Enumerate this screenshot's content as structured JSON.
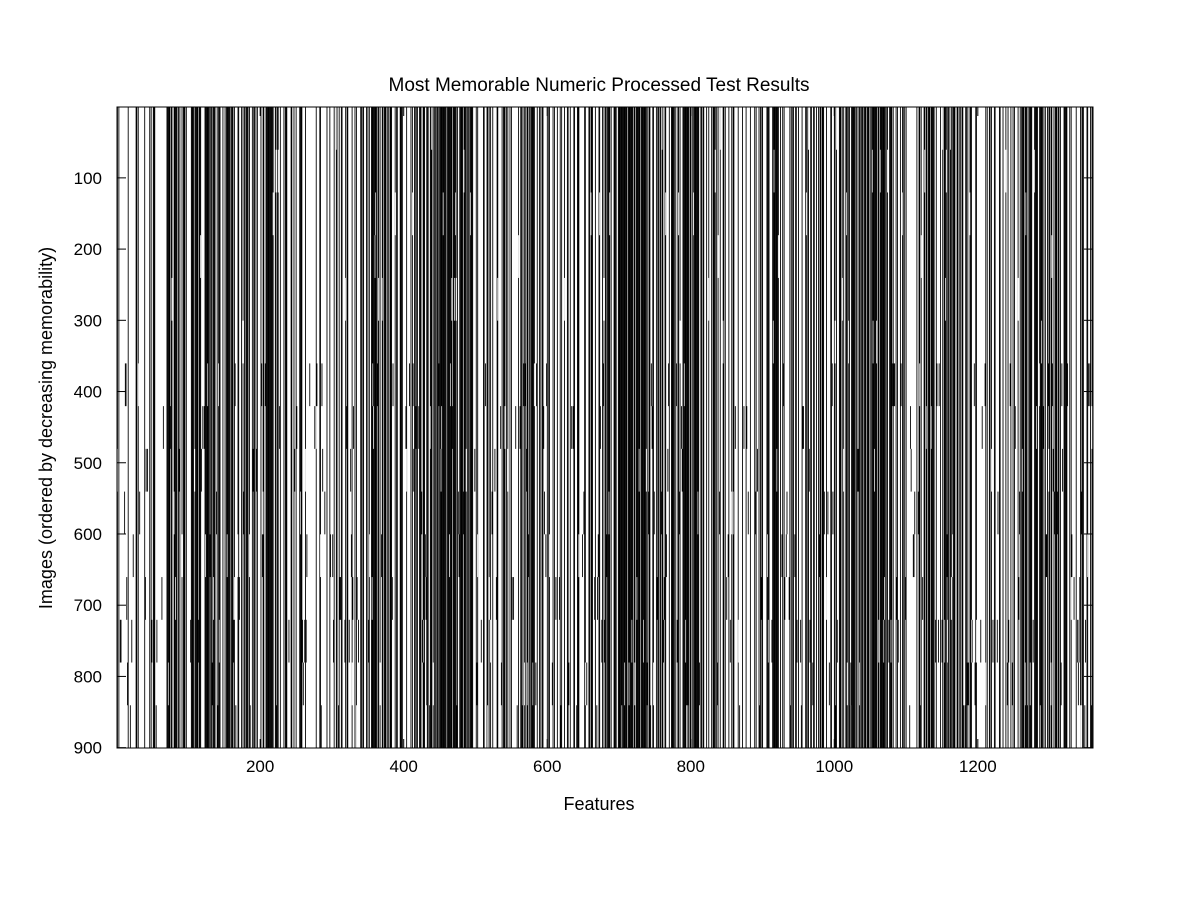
{
  "chart_data": {
    "type": "heatmap",
    "title": "Most Memorable Numeric Processed Test Results",
    "xlabel": "Features",
    "ylabel": "Images (ordered by decreasing memorability)",
    "xlim": [
      0.5,
      1360.5
    ],
    "ylim": [
      0.5,
      900.5
    ],
    "y_reversed": true,
    "x_ticks": [
      200,
      400,
      600,
      800,
      1000,
      1200
    ],
    "y_ticks": [
      100,
      200,
      300,
      400,
      500,
      600,
      700,
      800,
      900
    ],
    "colormap": [
      "#ffffff",
      "#000000"
    ],
    "n_features": 1360,
    "n_images": 900,
    "cell_values": "binary (0 = white, 1 = black); per-cell values not legible"
  }
}
